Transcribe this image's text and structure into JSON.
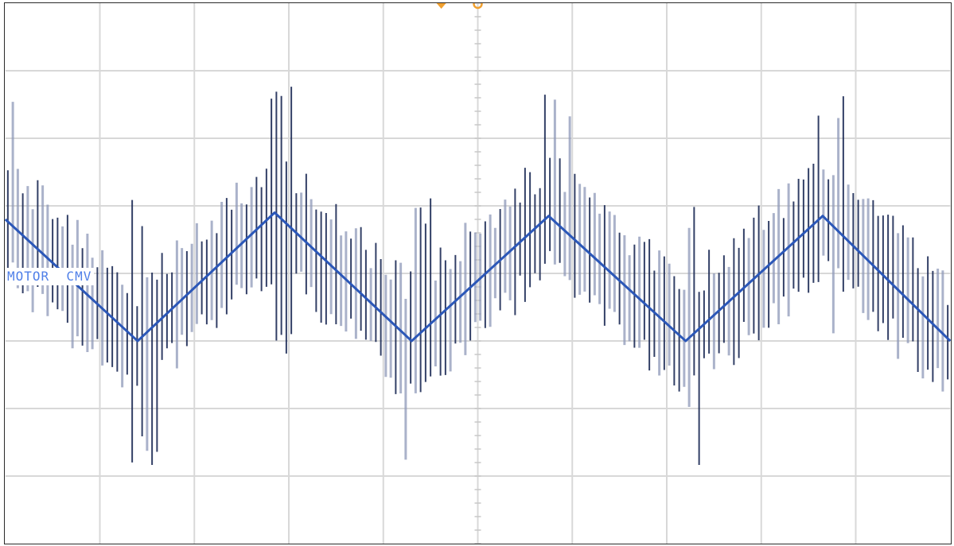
{
  "chart_data": {
    "type": "line",
    "title": "",
    "xlabel": "",
    "ylabel": "",
    "x_divisions": 10,
    "y_divisions": 8,
    "grid": true,
    "channel_label": "MOTOR  CMV",
    "colors": {
      "grid": "#d8d8d8",
      "center_axis": "#c8c8c8",
      "trace": "#2b57b8",
      "spikes_dark": "#1c2a55",
      "spikes_light": "#8d98b8",
      "trigger_marker": "#f0a030",
      "label_text": "#4f7fe8"
    },
    "series": [
      {
        "name": "",
        "x": [
          0.0,
          1.4,
          2.85,
          4.3,
          5.75,
          7.2,
          8.65,
          10.0
        ],
        "y": [
          0.8,
          -1.0,
          0.9,
          -1.0,
          0.85,
          -1.0,
          0.85,
          -1.0
        ],
        "xlim": [
          0,
          10
        ],
        "ylim": [
          -4,
          4
        ]
      }
    ],
    "pwm_envelope": {
      "spike_band_half_width": 0.9,
      "max_spike_amplitude": 2.1
    }
  }
}
